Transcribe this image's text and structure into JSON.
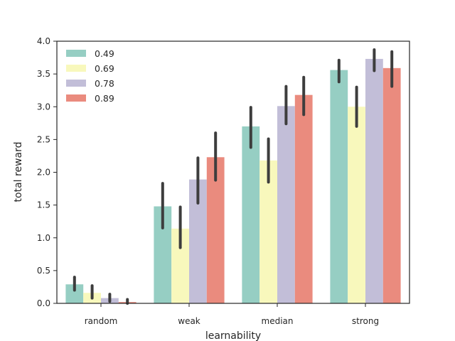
{
  "chart_data": {
    "type": "bar",
    "xlabel": "learnability",
    "ylabel": "total reward",
    "categories": [
      "random",
      "weak",
      "median",
      "strong"
    ],
    "ylim": [
      0,
      4.0
    ],
    "yticks": [
      "0.0",
      "0.5",
      "1.0",
      "1.5",
      "2.0",
      "2.5",
      "3.0",
      "3.5",
      "4.0"
    ],
    "grid": false,
    "legend_position": "top-left",
    "series": [
      {
        "name": "0.49",
        "color": "#96cec3",
        "values": [
          0.29,
          1.48,
          2.7,
          3.56
        ],
        "err_low": [
          0.2,
          1.15,
          2.38,
          3.38
        ],
        "err_high": [
          0.4,
          1.83,
          2.99,
          3.71
        ]
      },
      {
        "name": "0.69",
        "color": "#f8f8bc",
        "values": [
          0.16,
          1.14,
          2.18,
          3.0
        ],
        "err_low": [
          0.08,
          0.85,
          1.85,
          2.7
        ],
        "err_high": [
          0.27,
          1.47,
          2.51,
          3.3
        ]
      },
      {
        "name": "0.78",
        "color": "#c2bed8",
        "values": [
          0.08,
          1.89,
          3.01,
          3.73
        ],
        "err_low": [
          0.03,
          1.53,
          2.74,
          3.55
        ],
        "err_high": [
          0.14,
          2.22,
          3.31,
          3.87
        ]
      },
      {
        "name": "0.89",
        "color": "#ea8b7e",
        "values": [
          0.02,
          2.23,
          3.18,
          3.59
        ],
        "err_low": [
          0.0,
          1.88,
          2.88,
          3.31
        ],
        "err_high": [
          0.06,
          2.6,
          3.45,
          3.84
        ]
      }
    ]
  }
}
